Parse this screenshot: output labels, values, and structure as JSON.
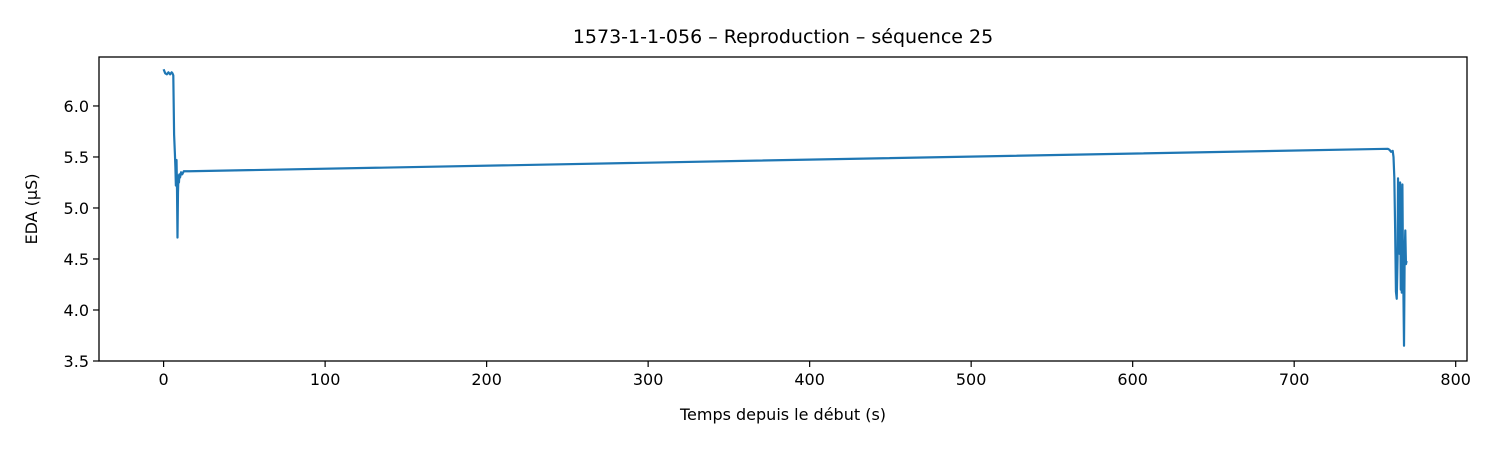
{
  "chart_data": {
    "type": "line",
    "title": "1573-1-1-056 – Reproduction – séquence 25",
    "xlabel": "Temps depuis le début (s)",
    "ylabel": "EDA (µS)",
    "xlim": [
      -40,
      807
    ],
    "ylim": [
      3.5,
      6.48
    ],
    "xticks": [
      0,
      100,
      200,
      300,
      400,
      500,
      600,
      700,
      800
    ],
    "xtick_labels": [
      "0",
      "100",
      "200",
      "300",
      "400",
      "500",
      "600",
      "700",
      "800"
    ],
    "yticks": [
      3.5,
      4.0,
      4.5,
      5.0,
      5.5,
      6.0
    ],
    "ytick_labels": [
      "3.5",
      "4.0",
      "4.5",
      "5.0",
      "5.5",
      "6.0"
    ],
    "grid": false,
    "series": [
      {
        "color": "#1f77b4",
        "x": [
          0,
          1,
          2,
          3,
          4,
          5,
          5.5,
          6,
          6.5,
          7,
          7.3,
          7.6,
          8,
          8.3,
          8.6,
          8.9,
          9.2,
          9.5,
          9.8,
          10.2,
          10.8,
          11.5,
          12.5,
          14,
          16,
          758,
          759,
          760,
          761,
          761.5,
          762,
          762.5,
          763,
          763.5,
          764,
          764.3,
          764.6,
          765,
          765.3,
          765.6,
          766,
          766.3,
          766.6,
          767,
          767.3,
          767.6,
          768,
          768.4,
          768.8,
          769.2,
          769.6
        ],
        "y": [
          6.36,
          6.32,
          6.31,
          6.33,
          6.31,
          6.33,
          6.32,
          6.3,
          5.72,
          5.53,
          5.4,
          5.22,
          5.47,
          5.18,
          4.71,
          5.15,
          5.32,
          5.25,
          5.33,
          5.3,
          5.35,
          5.33,
          5.36,
          5.36,
          5.36,
          5.58,
          5.57,
          5.55,
          5.56,
          5.5,
          5.3,
          4.8,
          4.18,
          4.11,
          4.5,
          5.29,
          4.6,
          5.1,
          4.55,
          5.25,
          4.2,
          5.05,
          4.17,
          5.23,
          4.58,
          4.22,
          3.65,
          4.55,
          4.78,
          4.45,
          4.48
        ]
      }
    ]
  }
}
